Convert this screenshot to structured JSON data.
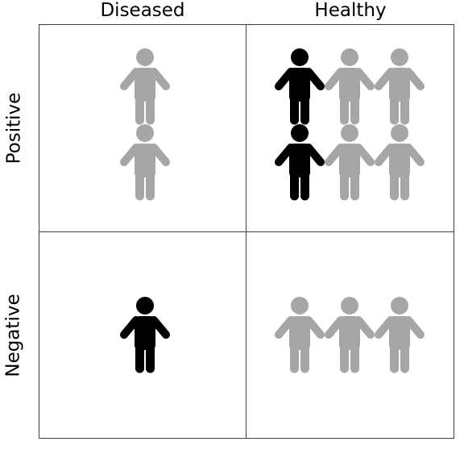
{
  "columns": {
    "diseased_label": "Diseased",
    "healthy_label": "Healthy"
  },
  "rows": {
    "positive_label": "Positive",
    "negative_label": "Negative"
  },
  "colors": {
    "highlighted_person": "#000000",
    "other_person": "#a6a6a6",
    "grid_line": "#404040"
  },
  "cells": {
    "positive_diseased": {
      "people": [
        "gray",
        "gray"
      ]
    },
    "positive_healthy": {
      "people": [
        "black",
        "gray",
        "gray",
        "black",
        "gray",
        "gray"
      ]
    },
    "negative_diseased": {
      "people": [
        "black"
      ]
    },
    "negative_healthy": {
      "people": [
        "gray",
        "gray",
        "gray"
      ]
    }
  }
}
